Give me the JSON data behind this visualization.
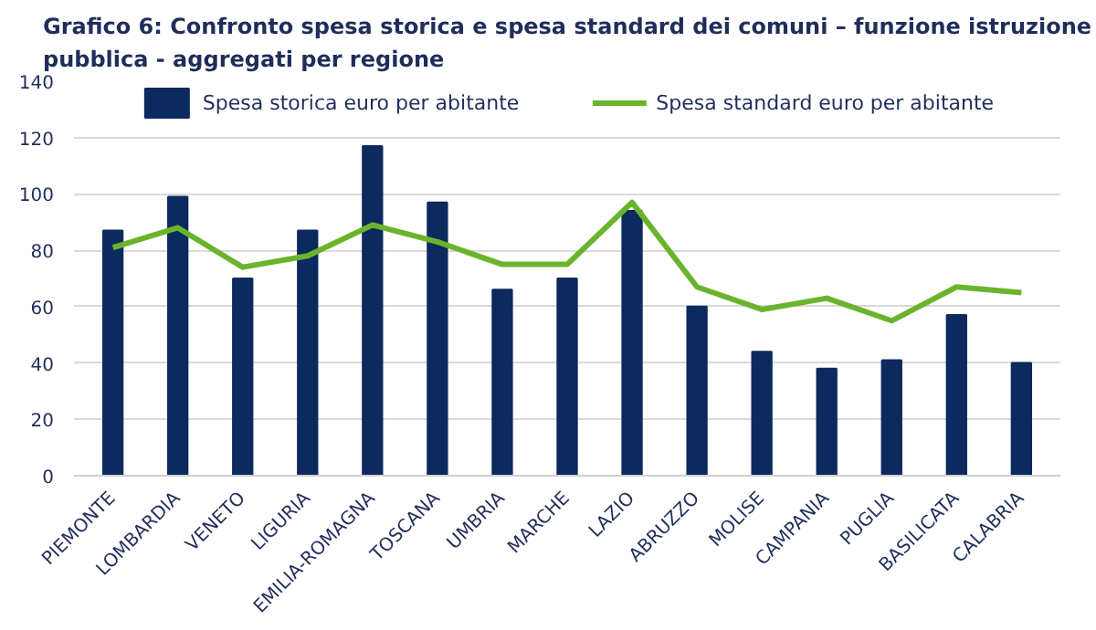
{
  "chart_data": {
    "type": "bar",
    "title": "Grafico 6: Confronto spesa storica e spesa standard dei comuni – funzione istruzione pubblica - aggregati per regione",
    "categories": [
      "PIEMONTE",
      "LOMBARDIA",
      "VENETO",
      "LIGURIA",
      "EMILIA-ROMAGNA",
      "TOSCANA",
      "UMBRIA",
      "MARCHE",
      "LAZIO",
      "ABRUZZO",
      "MOLISE",
      "CAMPANIA",
      "PUGLIA",
      "BASILICATA",
      "CALABRIA"
    ],
    "series": [
      {
        "name": "Spesa storica euro per abitante",
        "color": "#0c2a5e",
        "values": [
          87,
          99,
          70,
          87,
          117,
          97,
          66,
          70,
          94,
          60,
          44,
          38,
          41,
          57,
          40
        ]
      },
      {
        "name": "Spesa standard euro per abitante",
        "type": "line",
        "color": "#6ab42d",
        "values": [
          81,
          88,
          74,
          78,
          89,
          83,
          75,
          75,
          97,
          67,
          59,
          63,
          55,
          67,
          65
        ]
      }
    ],
    "ylim": [
      0,
      140
    ],
    "yticks": [
      0,
      20,
      40,
      60,
      80,
      100,
      120,
      140
    ],
    "grid": "y",
    "legend": "top",
    "marker": "none"
  }
}
